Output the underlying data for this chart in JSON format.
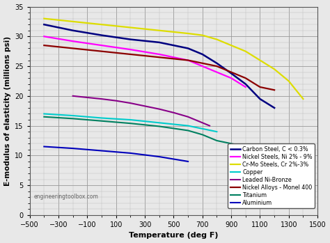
{
  "xlabel": "Temperature (deg F)",
  "ylabel": "E-modulus of elasticity (millions psi)",
  "xlim": [
    -500,
    1500
  ],
  "ylim": [
    0,
    35
  ],
  "xticks": [
    -500,
    -300,
    -100,
    100,
    300,
    500,
    700,
    900,
    1100,
    1300,
    1500
  ],
  "yticks": [
    0,
    5,
    10,
    15,
    20,
    25,
    30,
    35
  ],
  "watermark": "engineeringtoolbox.com",
  "bg_color": "#E8E8E8",
  "series": [
    {
      "label": "Carbon Steel, C < 0.3%",
      "color": "#000080",
      "lw": 1.8,
      "x": [
        -400,
        -200,
        0,
        200,
        400,
        600,
        700,
        800,
        900,
        1000,
        1100,
        1200
      ],
      "y": [
        32.0,
        31.0,
        30.2,
        29.5,
        29.0,
        28.0,
        27.0,
        25.5,
        23.8,
        22.0,
        19.5,
        18.0
      ]
    },
    {
      "label": "Nickel Steels, Ni 2% - 9%",
      "color": "#FF00FF",
      "lw": 1.6,
      "x": [
        -400,
        -200,
        0,
        200,
        400,
        600,
        700,
        800,
        900,
        1000
      ],
      "y": [
        30.0,
        29.2,
        28.5,
        27.8,
        27.0,
        26.0,
        25.0,
        24.0,
        23.0,
        21.5
      ]
    },
    {
      "label": "Cr-Mo Steels, Cr 2%-3%",
      "color": "#DDDD00",
      "lw": 1.6,
      "x": [
        -400,
        -200,
        0,
        200,
        400,
        600,
        700,
        800,
        900,
        1000,
        1100,
        1200,
        1300,
        1400
      ],
      "y": [
        33.0,
        32.5,
        32.0,
        31.5,
        31.0,
        30.5,
        30.2,
        29.5,
        28.5,
        27.5,
        26.0,
        24.5,
        22.5,
        19.5
      ]
    },
    {
      "label": "Copper",
      "color": "#00CCCC",
      "lw": 1.5,
      "x": [
        -400,
        -200,
        0,
        200,
        400,
        600,
        700,
        800
      ],
      "y": [
        17.0,
        16.7,
        16.3,
        16.0,
        15.5,
        15.0,
        14.5,
        14.0
      ]
    },
    {
      "label": "Leaded Ni-Bronze",
      "color": "#880088",
      "lw": 1.5,
      "x": [
        -200,
        0,
        100,
        200,
        300,
        400,
        500,
        600,
        700,
        750
      ],
      "y": [
        20.0,
        19.5,
        19.2,
        18.8,
        18.3,
        17.8,
        17.2,
        16.5,
        15.5,
        15.0
      ]
    },
    {
      "label": "Nickel Alloys - Monel 400",
      "color": "#8B0000",
      "lw": 1.6,
      "x": [
        -400,
        -200,
        0,
        200,
        400,
        600,
        700,
        800,
        900,
        1000,
        1100,
        1200
      ],
      "y": [
        28.5,
        28.0,
        27.5,
        27.0,
        26.5,
        26.0,
        25.5,
        25.0,
        24.0,
        23.0,
        21.5,
        21.0
      ]
    },
    {
      "label": "Titanium",
      "color": "#008060",
      "lw": 1.5,
      "x": [
        -400,
        -200,
        0,
        200,
        400,
        600,
        700,
        800,
        900,
        1000,
        1100
      ],
      "y": [
        16.5,
        16.2,
        15.8,
        15.4,
        14.9,
        14.2,
        13.5,
        12.5,
        12.0,
        11.5,
        11.0
      ]
    },
    {
      "label": "Aluminium",
      "color": "#0000BB",
      "lw": 1.5,
      "x": [
        -400,
        -200,
        0,
        200,
        400,
        600
      ],
      "y": [
        11.5,
        11.2,
        10.8,
        10.4,
        9.8,
        9.0
      ]
    }
  ]
}
